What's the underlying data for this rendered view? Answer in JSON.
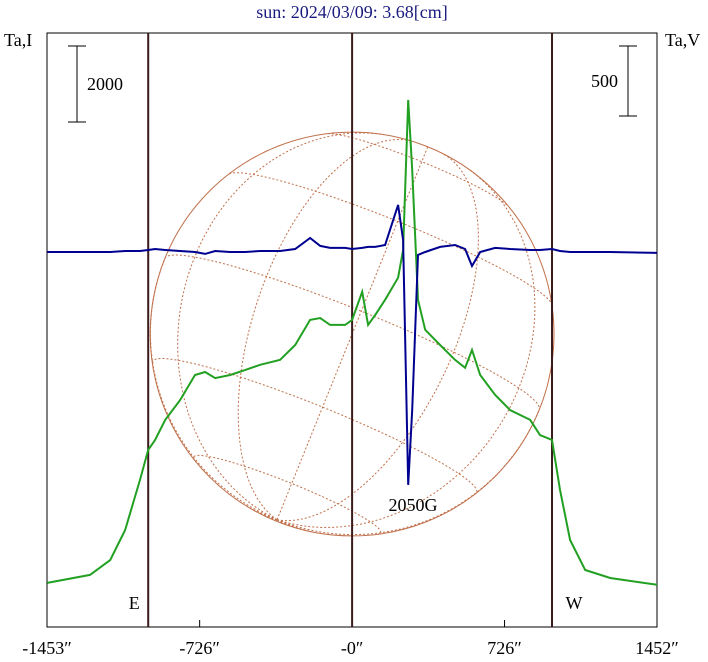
{
  "chart_data": {
    "type": "line",
    "title": "sun: 2024/03/09: 3.68[cm]",
    "y_label": "Ta,I",
    "y2_label": "Ta,V",
    "xlim": [
      -1453,
      1452
    ],
    "xticks": [
      {
        "value": -1453,
        "label": "-1453″"
      },
      {
        "value": -726,
        "label": "-726″"
      },
      {
        "value": 0,
        "label": "-0″"
      },
      {
        "value": 726,
        "label": "726″"
      },
      {
        "value": 1452,
        "label": "1452″"
      }
    ],
    "ylim": [
      0,
      15630
    ],
    "y2lim": [
      -2679,
      1564
    ],
    "scale_bars": [
      {
        "value": 2000
      },
      {
        "value": 500,
        "axis": "y2"
      }
    ],
    "markers": [
      {
        "label": "E",
        "x": -971
      },
      {
        "label": "W",
        "x": 952
      }
    ],
    "annotations": [
      "2050G"
    ],
    "x": [
      -1452,
      -1248,
      -1152,
      -1081,
      -1010,
      -971,
      -938,
      -890,
      -819,
      -748,
      -700,
      -652,
      -581,
      -510,
      -438,
      -343,
      -271,
      -200,
      -152,
      -105,
      -33,
      0,
      48,
      76,
      110,
      157,
      219,
      243,
      267,
      286,
      314,
      348,
      419,
      490,
      538,
      571,
      610,
      681,
      752,
      848,
      895,
      952,
      990,
      1038,
      1110,
      1229,
      1452
    ],
    "series": [
      {
        "color": "#22a022",
        "values": [
          1160,
          1370,
          1760,
          2550,
          3870,
          4660,
          4920,
          5450,
          5970,
          6630,
          6710,
          6550,
          6630,
          6760,
          6900,
          7030,
          7420,
          8080,
          8130,
          7950,
          7950,
          8080,
          8820,
          7950,
          8210,
          8610,
          9190,
          9920,
          13870,
          12030,
          8610,
          7820,
          7420,
          7030,
          6820,
          7290,
          6630,
          6110,
          5710,
          5450,
          5050,
          4920,
          3610,
          2290,
          1500,
          1290,
          1110
        ]
      },
      {
        "color": "#000090",
        "axis": "y2",
        "values": [
          0,
          0,
          0,
          7,
          7,
          14,
          21,
          14,
          7,
          0,
          -14,
          7,
          0,
          0,
          7,
          7,
          21,
          100,
          43,
          29,
          29,
          21,
          29,
          36,
          36,
          50,
          336,
          86,
          -1664,
          -1129,
          -21,
          0,
          36,
          50,
          21,
          -100,
          0,
          29,
          21,
          14,
          14,
          21,
          7,
          0,
          0,
          0,
          -7
        ]
      }
    ]
  }
}
